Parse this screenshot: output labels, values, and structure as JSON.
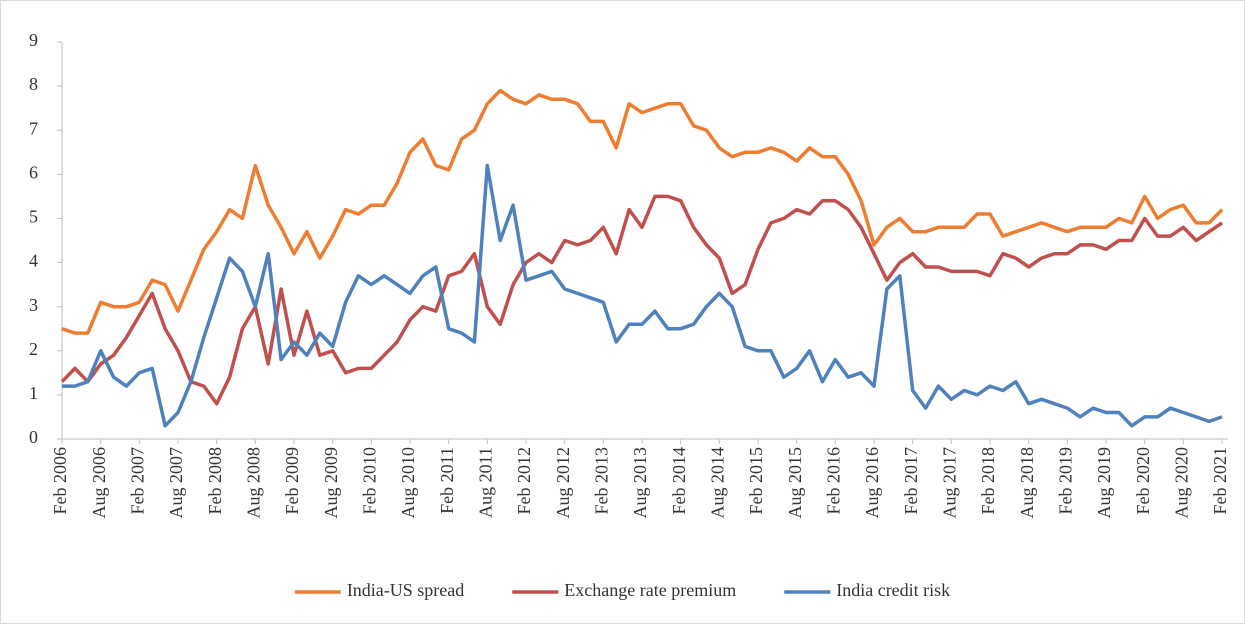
{
  "chart_data": {
    "type": "line",
    "categories": [
      "Feb 2006",
      null,
      null,
      "Aug 2006",
      null,
      null,
      "Feb 2007",
      null,
      null,
      "Aug 2007",
      null,
      null,
      "Feb 2008",
      null,
      null,
      "Aug 2008",
      null,
      null,
      "Feb 2009",
      null,
      null,
      "Aug 2009",
      null,
      null,
      "Feb 2010",
      null,
      null,
      "Aug 2010",
      null,
      null,
      "Feb 2011",
      null,
      null,
      "Aug 2011",
      null,
      null,
      "Feb 2012",
      null,
      null,
      "Aug 2012",
      null,
      null,
      "Feb 2013",
      null,
      null,
      "Aug 2013",
      null,
      null,
      "Feb 2014",
      null,
      null,
      "Aug 2014",
      null,
      null,
      "Feb 2015",
      null,
      null,
      "Aug 2015",
      null,
      null,
      "Feb 2016",
      null,
      null,
      "Aug 2016",
      null,
      null,
      "Feb 2017",
      null,
      null,
      "Aug 2017",
      null,
      null,
      "Feb 2018",
      null,
      null,
      "Aug 2018",
      null,
      null,
      "Feb 2019",
      null,
      null,
      "Aug 2019",
      null,
      null,
      "Feb 2020",
      null,
      null,
      "Aug 2020",
      null,
      null,
      "Feb 2021"
    ],
    "series": [
      {
        "name": "India-US spread",
        "color": "#ED7D31",
        "values": [
          2.5,
          2.4,
          2.4,
          3.1,
          3.0,
          3.0,
          3.1,
          3.6,
          3.5,
          2.9,
          3.6,
          4.3,
          4.7,
          5.2,
          5.0,
          6.2,
          5.3,
          4.8,
          4.2,
          4.7,
          4.1,
          4.6,
          5.2,
          5.1,
          5.3,
          5.3,
          5.8,
          6.5,
          6.8,
          6.2,
          6.1,
          6.8,
          7.0,
          7.6,
          7.9,
          7.7,
          7.6,
          7.8,
          7.7,
          7.7,
          7.6,
          7.2,
          7.2,
          6.6,
          7.6,
          7.4,
          7.5,
          7.6,
          7.6,
          7.1,
          7.0,
          6.6,
          6.4,
          6.5,
          6.5,
          6.6,
          6.5,
          6.3,
          6.6,
          6.4,
          6.4,
          6.0,
          5.4,
          4.4,
          4.8,
          5.0,
          4.7,
          4.7,
          4.8,
          4.8,
          4.8,
          5.1,
          5.1,
          4.6,
          4.7,
          4.8,
          4.9,
          4.8,
          4.7,
          4.8,
          4.8,
          4.8,
          5.0,
          4.9,
          5.5,
          5.0,
          5.2,
          5.3,
          4.9,
          4.9,
          5.2
        ]
      },
      {
        "name": "Exchange rate premium",
        "color": "#C0504D",
        "values": [
          1.3,
          1.6,
          1.3,
          1.7,
          1.9,
          2.3,
          2.8,
          3.3,
          2.5,
          2.0,
          1.3,
          1.2,
          0.8,
          1.4,
          2.5,
          3.0,
          1.7,
          3.4,
          1.9,
          2.9,
          1.9,
          2.0,
          1.5,
          1.6,
          1.6,
          1.9,
          2.2,
          2.7,
          3.0,
          2.9,
          3.7,
          3.8,
          4.2,
          3.0,
          2.6,
          3.5,
          4.0,
          4.2,
          4.0,
          4.5,
          4.4,
          4.5,
          4.8,
          4.2,
          5.2,
          4.8,
          5.5,
          5.5,
          5.4,
          4.8,
          4.4,
          4.1,
          3.3,
          3.5,
          4.3,
          4.9,
          5.0,
          5.2,
          5.1,
          5.4,
          5.4,
          5.2,
          4.8,
          4.2,
          3.6,
          4.0,
          4.2,
          3.9,
          3.9,
          3.8,
          3.8,
          3.8,
          3.7,
          4.2,
          4.1,
          3.9,
          4.1,
          4.2,
          4.2,
          4.4,
          4.4,
          4.3,
          4.5,
          4.5,
          5.0,
          4.6,
          4.6,
          4.8,
          4.5,
          4.7,
          4.9
        ]
      },
      {
        "name": "India credit risk",
        "color": "#4F81BD",
        "values": [
          1.2,
          1.2,
          1.3,
          2.0,
          1.4,
          1.2,
          1.5,
          1.6,
          0.3,
          0.6,
          1.3,
          2.3,
          3.2,
          4.1,
          3.8,
          3.0,
          4.2,
          1.8,
          2.2,
          1.9,
          2.4,
          2.1,
          3.1,
          3.7,
          3.5,
          3.7,
          3.5,
          3.3,
          3.7,
          3.9,
          2.5,
          2.4,
          2.2,
          6.2,
          4.5,
          5.3,
          3.6,
          3.7,
          3.8,
          3.4,
          3.3,
          3.2,
          3.1,
          2.2,
          2.6,
          2.6,
          2.9,
          2.5,
          2.5,
          2.6,
          3.0,
          3.3,
          3.0,
          2.1,
          2.0,
          2.0,
          1.4,
          1.6,
          2.0,
          1.3,
          1.8,
          1.4,
          1.5,
          1.2,
          3.4,
          3.7,
          1.1,
          0.7,
          1.2,
          0.9,
          1.1,
          1.0,
          1.2,
          1.1,
          1.3,
          0.8,
          0.9,
          0.8,
          0.7,
          0.5,
          0.7,
          0.6,
          0.6,
          0.3,
          0.5,
          0.5,
          0.7,
          0.6,
          0.5,
          0.4,
          0.5
        ]
      }
    ],
    "ylim": [
      0,
      9
    ],
    "yticks": [
      0,
      1,
      2,
      3,
      4,
      5,
      6,
      7,
      8,
      9
    ],
    "legend": "bottom"
  }
}
